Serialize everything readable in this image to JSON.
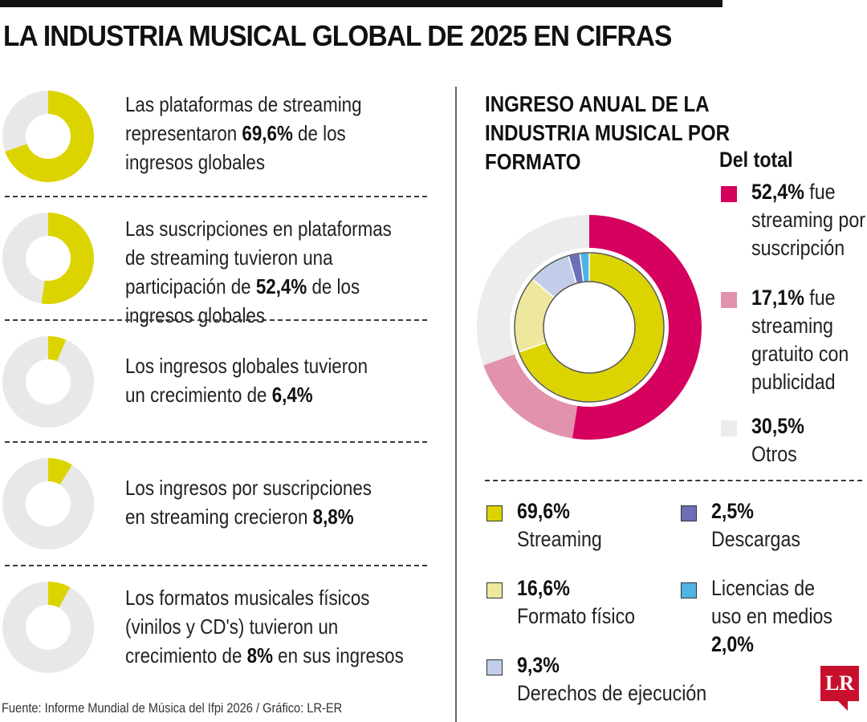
{
  "title": "LA INDUSTRIA MUSICAL GLOBAL DE 2025 EN CIFRAS",
  "colors": {
    "yellow": "#dcd400",
    "grey_track": "#e8e8e8",
    "magenta": "#d6005f",
    "pink": "#e292ac",
    "light_grey": "#ececec",
    "pale_yellow": "#ede89e",
    "light_blue": "#c1cde9",
    "purple": "#6c6fb6",
    "sky_blue": "#4fb3e3"
  },
  "stats": [
    {
      "value": 69.6,
      "pre": "Las plataformas de streaming representaron ",
      "bold": "69,6%",
      "post": " de los ingresos globales"
    },
    {
      "value": 52.4,
      "pre": "Las suscripciones en plataformas de streaming tuvieron una participación de ",
      "bold": "52,4%",
      "post": " de los ingresos globales"
    },
    {
      "value": 6.4,
      "pre": "Los ingresos globales tuvieron un crecimiento de ",
      "bold": "6,4%",
      "post": ""
    },
    {
      "value": 8.8,
      "pre": "Los ingresos por suscripciones en streaming crecieron ",
      "bold": "8,8%",
      "post": ""
    },
    {
      "value": 8,
      "pre": "Los formatos musicales físicos (vinilos y CD's) tuvieron un crecimiento de ",
      "bold": "8%",
      "post": " en sus ingresos"
    }
  ],
  "source": "Fuente: Informe Mundial de Música del Ifpi 2026 / Gráfico: LR-ER",
  "chart_title": "INGRESO ANUAL DE LA INDUSTRIA MUSICAL POR FORMATO",
  "legend_heading": "Del total",
  "chart_data": {
    "type": "pie",
    "title": "INGRESO ANUAL DE LA INDUSTRIA MUSICAL POR FORMATO",
    "outer_ring": {
      "legend_title": "Del total",
      "slices": [
        {
          "value_label": "52,4%",
          "text": "fue streaming por suscripción",
          "value": 52.4,
          "color": "#d6005f"
        },
        {
          "value_label": "17,1%",
          "text": "fue streaming gratuito con publicidad",
          "value": 17.1,
          "color": "#e292ac"
        },
        {
          "value_label": "30,5%",
          "text": "Otros",
          "value": 30.5,
          "color": "#ececec"
        }
      ]
    },
    "inner_ring": {
      "slices": [
        {
          "value_label": "69,6%",
          "label": "Streaming",
          "value": 69.6,
          "color": "#dcd400"
        },
        {
          "value_label": "16,6%",
          "label": "Formato físico",
          "value": 16.6,
          "color": "#ede89e"
        },
        {
          "value_label": "9,3%",
          "label": "Derechos de ejecución",
          "value": 9.3,
          "color": "#c1cde9"
        },
        {
          "value_label": "2,5%",
          "label": "Descargas",
          "value": 2.5,
          "color": "#6c6fb6"
        },
        {
          "value_label": "2,0%",
          "label": "Licencias de uso en medios",
          "value": 2.0,
          "color": "#4fb3e3"
        }
      ]
    }
  },
  "logo": "LR"
}
